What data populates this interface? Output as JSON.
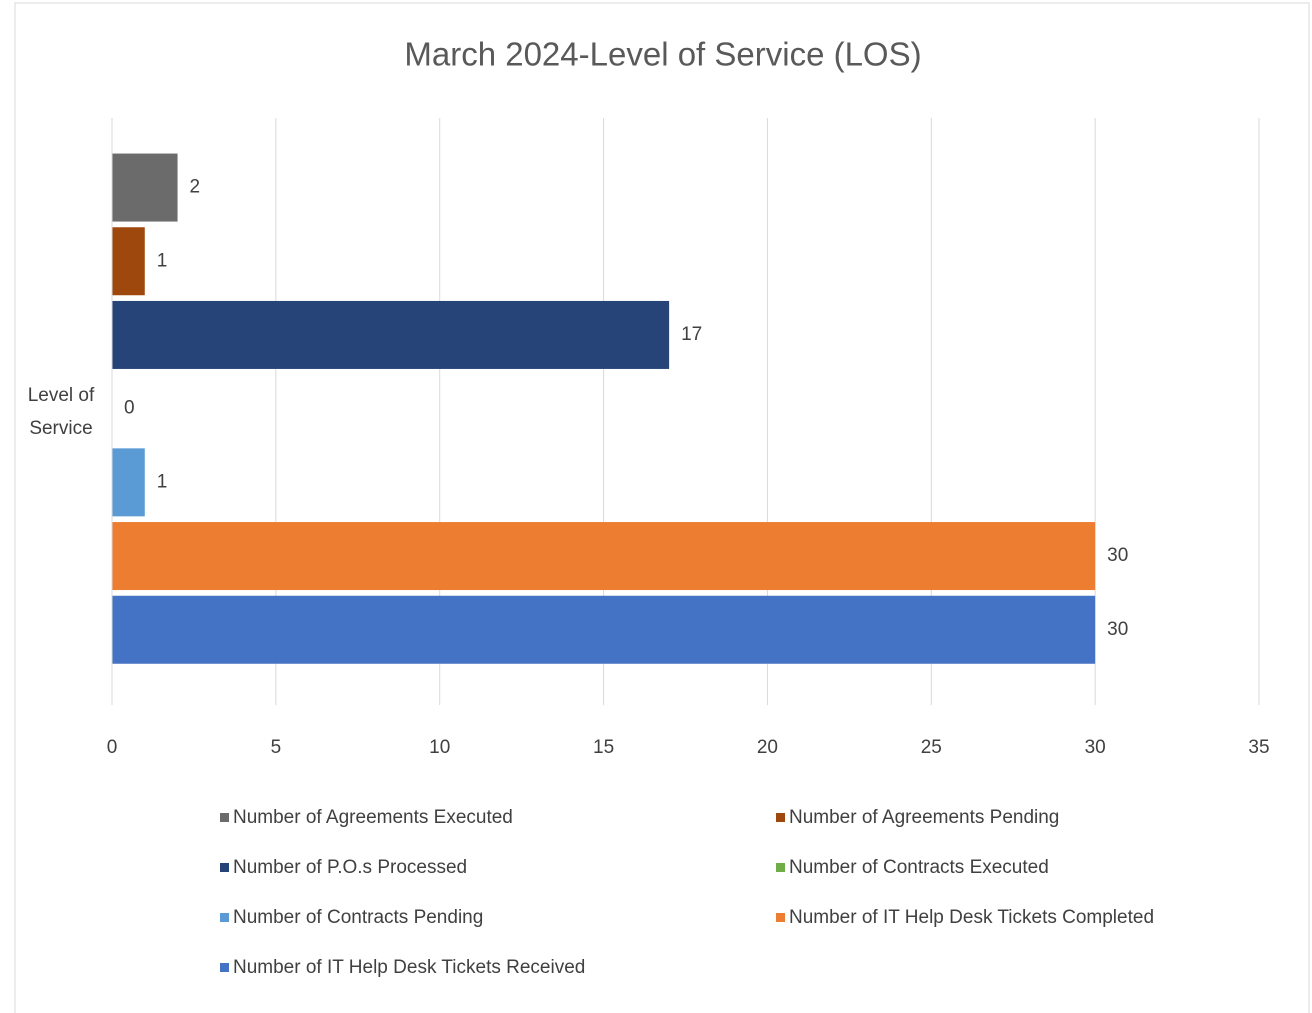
{
  "chart_data": {
    "type": "bar",
    "orientation": "horizontal",
    "title": "March 2024-Level of Service (LOS)",
    "categories": [
      "Level of Service"
    ],
    "series": [
      {
        "name": "Number of Agreements Executed",
        "color": "#6b6b6b",
        "values": [
          2
        ]
      },
      {
        "name": "Number of Agreements Pending",
        "color": "#9e480e",
        "values": [
          1
        ]
      },
      {
        "name": "Number of P.O.s Processed",
        "color": "#264478",
        "values": [
          17
        ]
      },
      {
        "name": "Number of Contracts Executed",
        "color": "#70ad47",
        "values": [
          0
        ]
      },
      {
        "name": "Number of Contracts Pending",
        "color": "#5b9bd5",
        "values": [
          1
        ]
      },
      {
        "name": "Number of IT Help Desk Tickets Completed",
        "color": "#ed7d31",
        "values": [
          30
        ]
      },
      {
        "name": "Number of IT Help Desk Tickets Received",
        "color": "#4472c4",
        "values": [
          30
        ]
      }
    ],
    "xlim": [
      0,
      35
    ],
    "xticks": [
      0,
      5,
      10,
      15,
      20,
      25,
      30,
      35
    ],
    "grid": true,
    "legend": "bottom"
  }
}
